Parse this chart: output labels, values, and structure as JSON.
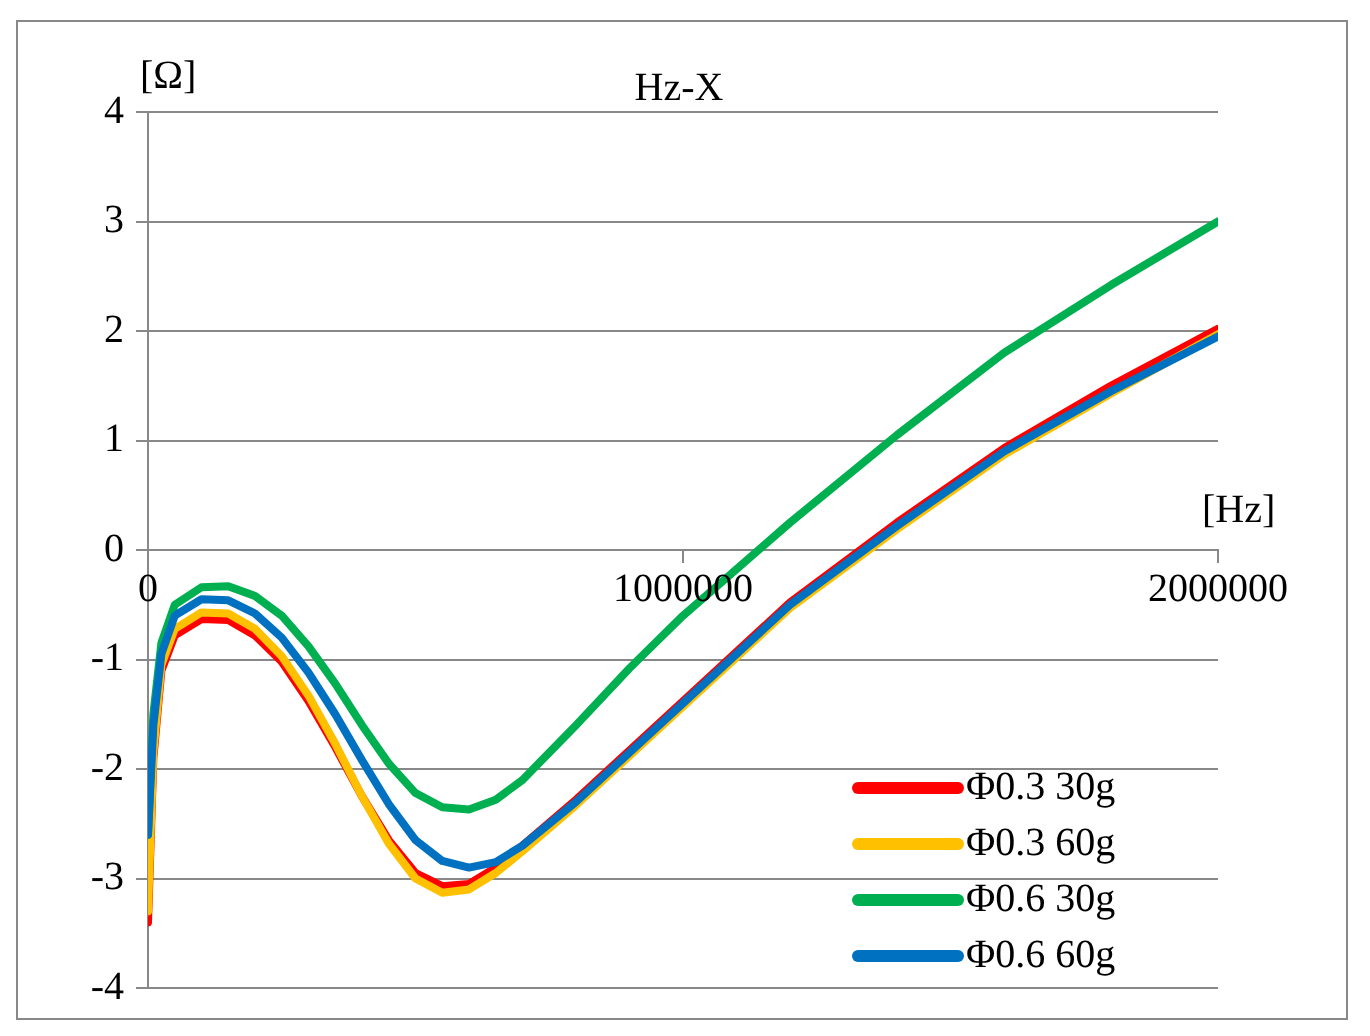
{
  "chart_data": {
    "type": "line",
    "title": "Hz-X",
    "xlabel": "[Hz]",
    "ylabel": "[Ω]",
    "x": [
      0,
      10000,
      25000,
      50000,
      100000,
      150000,
      200000,
      250000,
      300000,
      350000,
      400000,
      450000,
      500000,
      550000,
      600000,
      650000,
      700000,
      800000,
      900000,
      1000000,
      1200000,
      1400000,
      1600000,
      1800000,
      2000000
    ],
    "series": [
      {
        "name": "Φ0.3 30g",
        "color": "#ff0000",
        "values": [
          -3.4,
          -1.9,
          -1.1,
          -0.78,
          -0.63,
          -0.64,
          -0.78,
          -1.02,
          -1.38,
          -1.8,
          -2.25,
          -2.65,
          -2.95,
          -3.07,
          -3.05,
          -2.9,
          -2.7,
          -2.28,
          -1.83,
          -1.38,
          -0.48,
          0.25,
          0.93,
          1.5,
          2.02
        ]
      },
      {
        "name": "Φ0.3 60g",
        "color": "#ffc000",
        "values": [
          -3.3,
          -1.85,
          -1.05,
          -0.72,
          -0.57,
          -0.58,
          -0.72,
          -0.97,
          -1.33,
          -1.77,
          -2.25,
          -2.68,
          -3.0,
          -3.13,
          -3.1,
          -2.95,
          -2.75,
          -2.33,
          -1.88,
          -1.43,
          -0.53,
          0.19,
          0.87,
          1.43,
          1.97
        ]
      },
      {
        "name": "Φ0.6 30g",
        "color": "#00b050",
        "values": [
          -2.6,
          -1.5,
          -0.85,
          -0.5,
          -0.34,
          -0.33,
          -0.42,
          -0.6,
          -0.88,
          -1.22,
          -1.6,
          -1.95,
          -2.22,
          -2.35,
          -2.37,
          -2.28,
          -2.1,
          -1.6,
          -1.08,
          -0.6,
          0.25,
          1.05,
          1.8,
          2.42,
          3.0
        ]
      },
      {
        "name": "Φ0.6 60g",
        "color": "#0070c0",
        "values": [
          -2.6,
          -1.6,
          -0.95,
          -0.6,
          -0.45,
          -0.46,
          -0.58,
          -0.8,
          -1.12,
          -1.5,
          -1.92,
          -2.32,
          -2.65,
          -2.84,
          -2.9,
          -2.85,
          -2.7,
          -2.3,
          -1.85,
          -1.4,
          -0.5,
          0.22,
          0.9,
          1.45,
          1.95
        ]
      }
    ],
    "xlim": [
      0,
      2000000
    ],
    "xticks": [
      0,
      1000000,
      2000000
    ],
    "ylim": [
      -4,
      4
    ],
    "yticks": [
      -4,
      -3,
      -2,
      -1,
      0,
      1,
      2,
      3,
      4
    ],
    "grid": "y",
    "legend": "bottom right",
    "marker": "none",
    "line_style": "solid"
  }
}
